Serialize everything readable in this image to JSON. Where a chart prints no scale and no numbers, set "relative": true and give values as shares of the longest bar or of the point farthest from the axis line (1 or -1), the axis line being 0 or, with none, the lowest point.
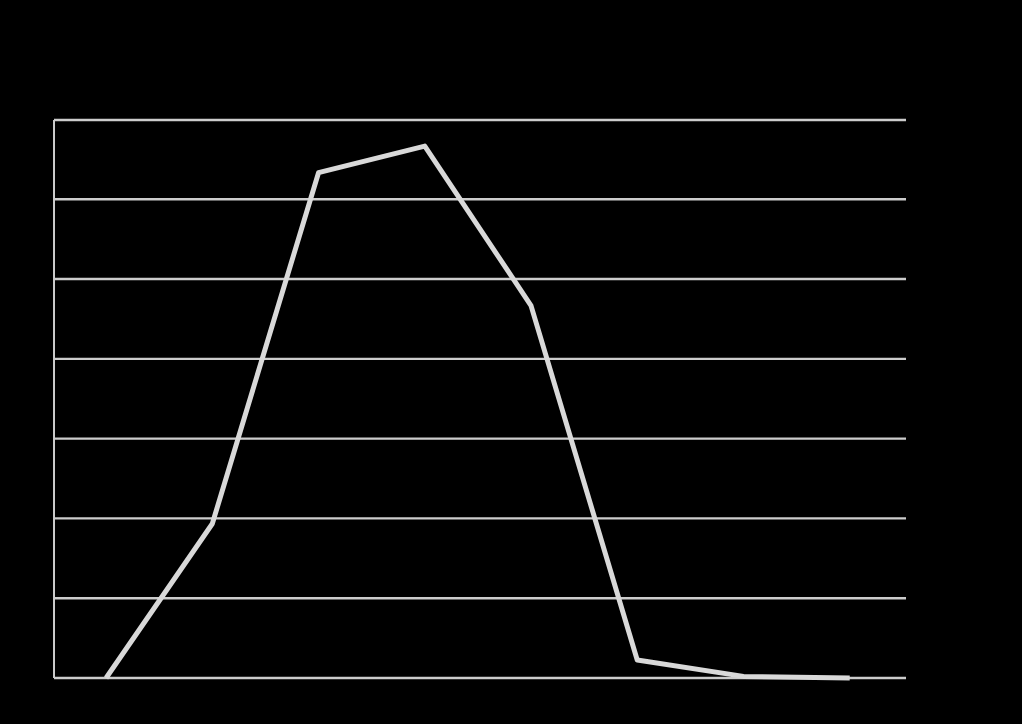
{
  "chart_data": {
    "type": "line",
    "relative": true,
    "grid": "y",
    "categories": [
      null,
      null,
      null,
      null,
      null,
      null,
      null,
      null
    ],
    "series": [
      {
        "color": "#d9d9d9",
        "values": [
          0,
          0.29,
          0.95,
          1,
          0.7,
          0.034,
          0.003,
          0
        ]
      }
    ],
    "marker": "none",
    "line_style": "solid"
  }
}
